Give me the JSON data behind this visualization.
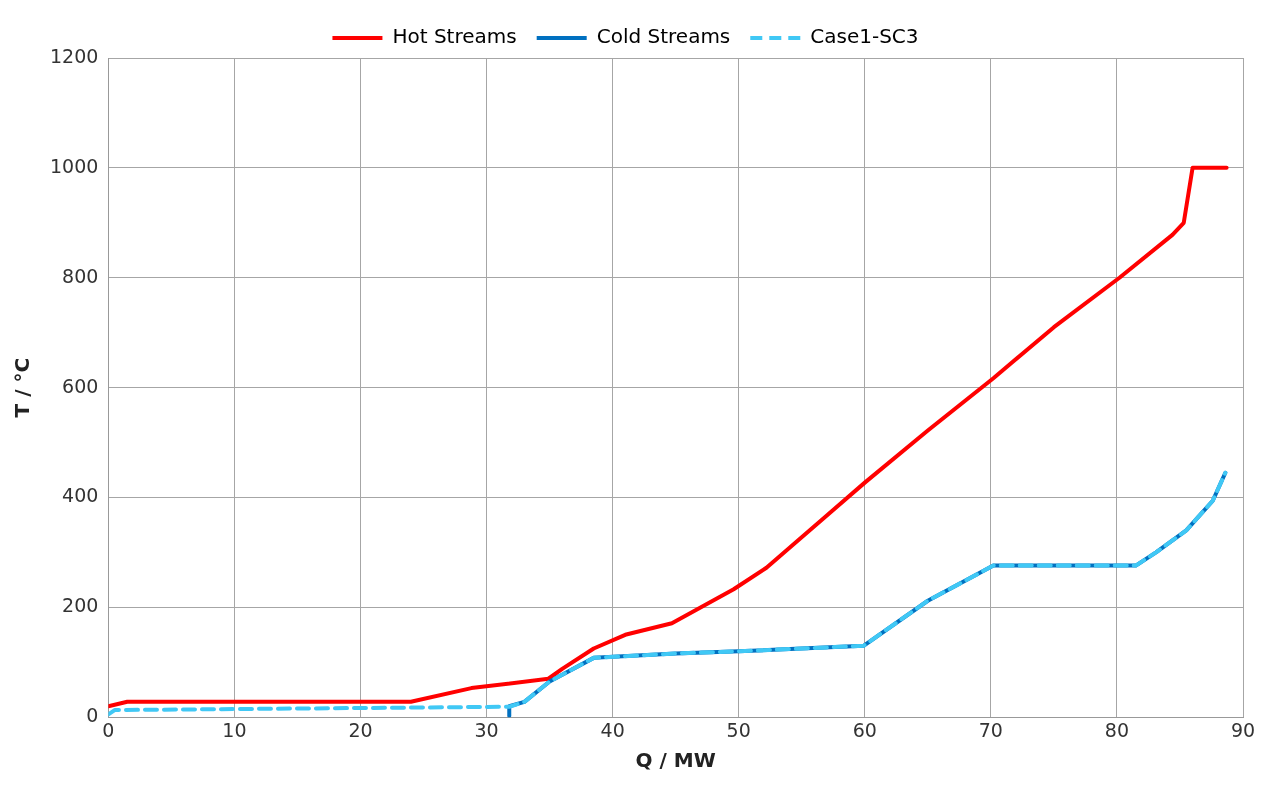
{
  "chart_data": {
    "type": "line",
    "xlabel": "Q / MW",
    "ylabel": "T / °C",
    "xlim": [
      0,
      90
    ],
    "xticks": [
      0,
      10,
      20,
      30,
      40,
      50,
      60,
      70,
      80,
      90
    ],
    "ylim": [
      0,
      1200
    ],
    "yticks": [
      0,
      200,
      400,
      600,
      800,
      1000,
      1200
    ],
    "grid": true,
    "legend": "top",
    "marker": "none",
    "series": [
      {
        "name": "Hot Streams",
        "color": "#ff0000",
        "line_style": "solid",
        "x": [
          0,
          1.5,
          24,
          28.8,
          34.9,
          36,
          38.5,
          41,
          44.7,
          49.6,
          52.2,
          60,
          65,
          70.2,
          75,
          80.2,
          84.4,
          85.3,
          86,
          88.7
        ],
        "values": [
          20,
          28,
          28,
          53,
          70,
          88,
          125,
          150,
          171,
          233,
          272,
          427,
          522,
          617,
          710,
          800,
          878,
          900,
          1000,
          1000
        ]
      },
      {
        "name": "Cold Streams",
        "color": "#0070c0",
        "line_style": "solid",
        "x": [
          31.8,
          31.8,
          33,
          35,
          38.5,
          45,
          50,
          59.9,
          65,
          70.2,
          81.5,
          83.1,
          85.5,
          87.6,
          88.6
        ],
        "values": [
          2,
          20,
          28,
          65,
          108,
          116,
          120,
          130,
          212,
          276,
          276,
          300,
          340,
          394,
          445
        ]
      },
      {
        "name": "Case1-SC3",
        "color": "#40c8f5",
        "line_style": "dashed",
        "x": [
          0,
          0.5,
          31.8,
          33,
          35,
          38.5,
          45,
          50,
          59.9,
          65,
          70.2,
          81.5,
          83.1,
          85.5,
          87.6,
          88.6
        ],
        "values": [
          5,
          13,
          19,
          28,
          65,
          108,
          116,
          120,
          130,
          212,
          276,
          276,
          300,
          340,
          394,
          445
        ]
      }
    ]
  }
}
